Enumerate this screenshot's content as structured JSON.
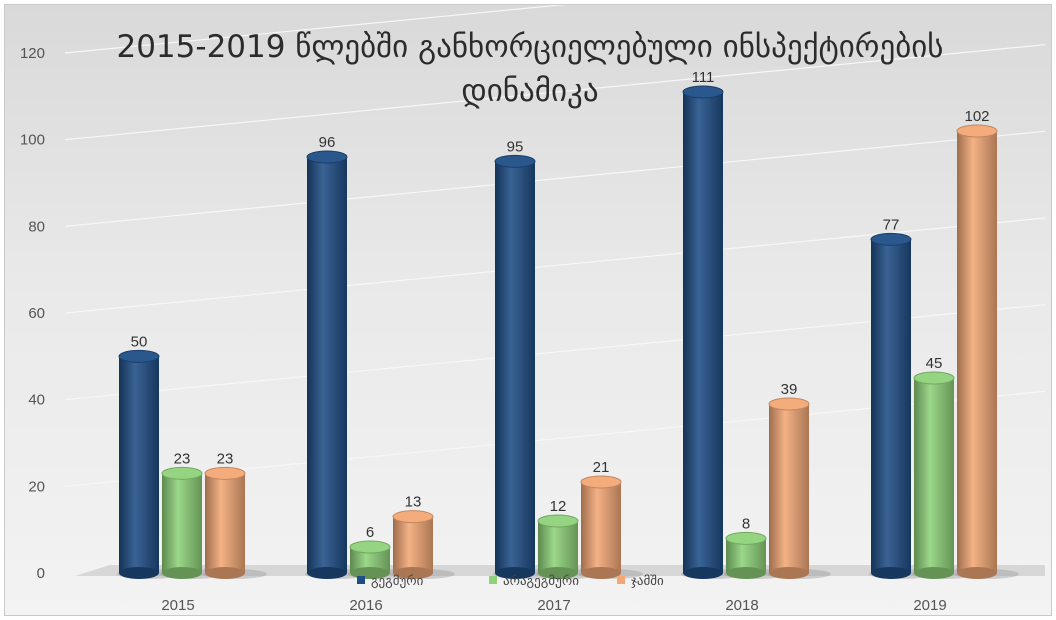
{
  "chart_data": {
    "type": "bar",
    "title_lines": [
      "2015-2019 წლებში განხორციელებული ინსპექტირების",
      "დინამიკა"
    ],
    "categories": [
      "2015",
      "2016",
      "2017",
      "2018",
      "2019"
    ],
    "series": [
      {
        "name": "გეგმური",
        "color": "#1f4e86",
        "values": [
          50,
          96,
          95,
          111,
          77
        ]
      },
      {
        "name": "არაგეგმური",
        "color": "#8fd27a",
        "values": [
          23,
          6,
          12,
          8,
          45
        ]
      },
      {
        "name": "ჯამში",
        "color": "#f3a876",
        "values": [
          23,
          13,
          21,
          39,
          102
        ]
      }
    ],
    "ylim": [
      0,
      120
    ],
    "yticks": [
      0,
      20,
      40,
      60,
      80,
      100,
      120
    ],
    "grid": true,
    "legend_position": "bottom"
  }
}
